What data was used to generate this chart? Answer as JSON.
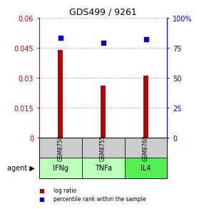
{
  "title": "GDS499 / 9261",
  "samples": [
    "GSM8750",
    "GSM8755",
    "GSM8760"
  ],
  "agents": [
    "IFNg",
    "TNFa",
    "IL4"
  ],
  "log_ratios": [
    0.044,
    0.026,
    0.031
  ],
  "percentile_ranks": [
    83,
    79,
    82
  ],
  "bar_color": "#bb0000",
  "dot_color": "#0000bb",
  "ylim_left": [
    0,
    0.06
  ],
  "ylim_right": [
    0,
    100
  ],
  "yticks_left": [
    0,
    0.015,
    0.03,
    0.045,
    0.06
  ],
  "ytick_labels_left": [
    "0",
    "0.015",
    "0.03",
    "0.045",
    "0.06"
  ],
  "yticks_right": [
    0,
    25,
    50,
    75,
    100
  ],
  "ytick_labels_right": [
    "0",
    "25",
    "50",
    "75",
    "100%"
  ],
  "sample_box_color": "#cccccc",
  "agent_box_color_ifng": "#bbffbb",
  "agent_box_color_tnfa": "#bbffbb",
  "agent_box_color_il4": "#55ee55",
  "agent_label": "agent",
  "legend_log_ratio": "log ratio",
  "legend_percentile": "percentile rank within the sample",
  "background_color": "#ffffff",
  "bar_width": 0.12
}
